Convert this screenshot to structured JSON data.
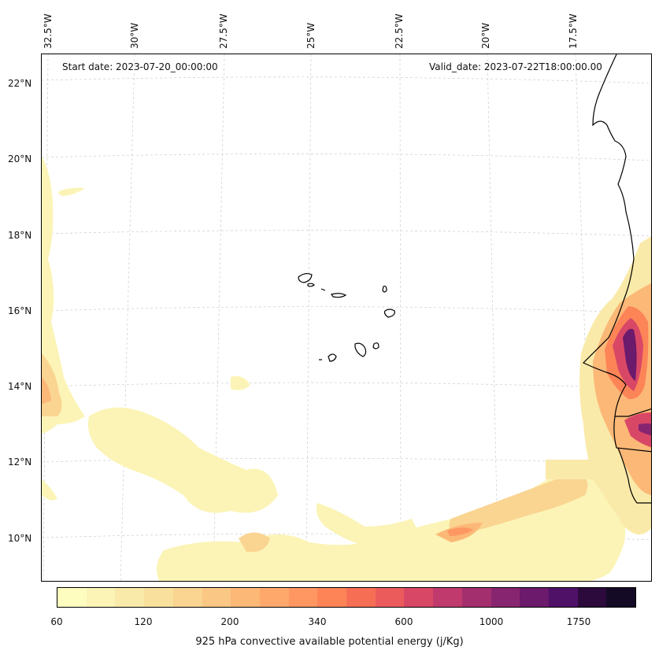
{
  "header": {
    "start_date": "Start date: 2023-07-20_00:00:00",
    "valid_date": "Valid_date: 2023-07-22T18:00:00.00"
  },
  "map": {
    "longitude_labels": [
      "32.5°W",
      "30°W",
      "27.5°W",
      "25°W",
      "22.5°W",
      "20°W",
      "17.5°W"
    ],
    "latitude_labels": [
      "22°N",
      "20°N",
      "18°N",
      "16°N",
      "14°N",
      "12°N",
      "10°N"
    ],
    "gridlines": "dashed light grey",
    "coastline_color": "#000000"
  },
  "colorbar": {
    "tick_labels": [
      "60",
      "120",
      "200",
      "340",
      "600",
      "1000",
      "1750"
    ],
    "title": "925 hPa convective available potential energy (j/Kg)",
    "colormap": "magma_r",
    "colors": [
      "#fcfdbf",
      "#fbf4b6",
      "#faeaa9",
      "#f9e09d",
      "#fad491",
      "#fbc784",
      "#fcb877",
      "#fea86c",
      "#fe9761",
      "#fc8457",
      "#f66f55",
      "#eb5b5c",
      "#d94766",
      "#c13a6d",
      "#a42f6e",
      "#882570",
      "#6b1a6c",
      "#4f1168",
      "#2c0a3b",
      "#140a26"
    ]
  }
}
